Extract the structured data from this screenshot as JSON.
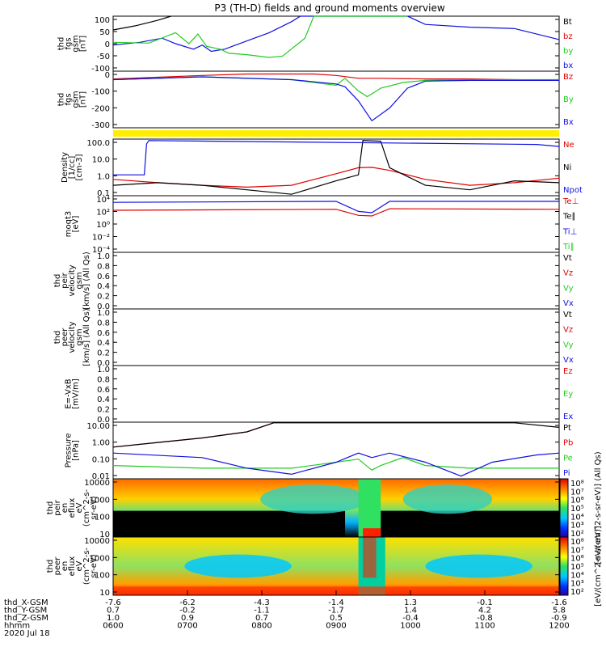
{
  "title": "P3 (TH-D) fields and ground moments overview",
  "colors": {
    "black": "#000000",
    "red": "#e00000",
    "green": "#22cc22",
    "blue": "#1010e0",
    "yellow": "#ffee00"
  },
  "chart_data": [
    {
      "type": "line",
      "ylabel": [
        "thd",
        "fgs",
        "gsm",
        "[nT]"
      ],
      "ylim": [
        -100,
        100
      ],
      "yticks": [
        "100",
        "50",
        "0",
        "-50",
        "-100"
      ],
      "legend": [
        {
          "name": "Bt",
          "color": "black"
        },
        {
          "name": "bz",
          "color": "red"
        },
        {
          "name": "by",
          "color": "green"
        },
        {
          "name": "bx",
          "color": "blue"
        }
      ],
      "series": [
        {
          "name": "Bt",
          "color": "black",
          "x": [
            0,
            0.05,
            0.1,
            0.13
          ],
          "y": [
            50,
            65,
            85,
            100
          ]
        },
        {
          "name": "bx",
          "color": "blue",
          "x": [
            0,
            0.06,
            0.11,
            0.14,
            0.18,
            0.2,
            0.22,
            0.25,
            0.3,
            0.35,
            0.4,
            0.42,
            0.5,
            0.58,
            0.6,
            0.66,
            0.7,
            0.8,
            0.9,
            1.0
          ],
          "y": [
            -5,
            5,
            20,
            0,
            -20,
            -5,
            -28,
            -20,
            10,
            40,
            80,
            100,
            100,
            100,
            100,
            100,
            70,
            60,
            55,
            15
          ]
        },
        {
          "name": "by",
          "color": "green",
          "x": [
            0,
            0.08,
            0.14,
            0.17,
            0.19,
            0.21,
            0.24,
            0.26,
            0.3,
            0.35,
            0.38,
            0.43,
            0.45,
            0.5,
            0.55,
            0.6,
            0.66
          ],
          "y": [
            5,
            2,
            40,
            0,
            35,
            -10,
            -20,
            -35,
            -40,
            -50,
            -45,
            20,
            100,
            100,
            100,
            100,
            100
          ]
        }
      ]
    },
    {
      "type": "line",
      "ylabel": [
        "thd",
        "fgs",
        "gsm",
        "[nT]"
      ],
      "ylim": [
        -340,
        60
      ],
      "yticks": [
        "0",
        "-100",
        "-200",
        "-300"
      ],
      "legend": [
        {
          "name": "Bz",
          "color": "red"
        },
        {
          "name": "By",
          "color": "green"
        },
        {
          "name": "Bx",
          "color": "blue"
        }
      ],
      "series": [
        {
          "name": "Bz",
          "color": "red",
          "x": [
            0,
            0.2,
            0.3,
            0.45,
            0.5,
            0.55,
            0.6,
            0.7,
            0.8,
            0.9,
            1.0
          ],
          "y": [
            5,
            30,
            40,
            40,
            30,
            10,
            10,
            5,
            5,
            0,
            -5
          ]
        },
        {
          "name": "By",
          "color": "green",
          "x": [
            0,
            0.2,
            0.4,
            0.5,
            0.52,
            0.55,
            0.57,
            0.6,
            0.65,
            0.7,
            0.8,
            1.0
          ],
          "y": [
            0,
            20,
            0,
            -40,
            10,
            -80,
            -120,
            -60,
            -20,
            -5,
            0,
            0
          ]
        },
        {
          "name": "Bx",
          "color": "blue",
          "x": [
            0,
            0.2,
            0.4,
            0.5,
            0.52,
            0.55,
            0.58,
            0.62,
            0.66,
            0.7,
            0.8,
            1.0
          ],
          "y": [
            0,
            20,
            0,
            -30,
            -50,
            -150,
            -290,
            -200,
            -60,
            -10,
            -5,
            -5
          ]
        }
      ]
    },
    {
      "type": "line",
      "ylabel": [
        "Density",
        "[1/cc]",
        "[cm-3]"
      ],
      "scale": "log",
      "ylim": [
        0.04,
        250
      ],
      "yticks": [
        "100.0",
        "10.0",
        "1.0",
        "0.1"
      ],
      "legend": [
        {
          "name": "Ne",
          "color": "red"
        },
        {
          "name": "Ni",
          "color": "black"
        },
        {
          "name": "Npot",
          "color": "blue"
        }
      ],
      "series": [
        {
          "name": "Ne",
          "color": "red",
          "x": [
            0,
            0.1,
            0.2,
            0.3,
            0.4,
            0.5,
            0.55,
            0.58,
            0.62,
            0.7,
            0.8,
            0.9,
            1.0
          ],
          "y": [
            0.5,
            0.3,
            0.2,
            0.15,
            0.2,
            1.2,
            3,
            3.2,
            2,
            0.5,
            0.2,
            0.3,
            0.6
          ]
        },
        {
          "name": "Ni",
          "color": "black",
          "x": [
            0,
            0.1,
            0.2,
            0.3,
            0.4,
            0.5,
            0.55,
            0.56,
            0.6,
            0.62,
            0.7,
            0.8,
            0.9,
            1.0
          ],
          "y": [
            0.2,
            0.3,
            0.2,
            0.1,
            0.05,
            0.4,
            1,
            200,
            180,
            3,
            0.2,
            0.1,
            0.4,
            0.3
          ]
        },
        {
          "name": "Npot",
          "color": "blue",
          "x": [
            0,
            0.07,
            0.075,
            0.08,
            0.95,
            1.0
          ],
          "y": [
            1,
            1,
            120,
            200,
            110,
            80
          ]
        }
      ]
    },
    {
      "type": "line",
      "ylabel": [
        "moqt3",
        "[eV]"
      ],
      "scale": "log",
      "ylim": [
        3e-05,
        300000
      ],
      "yticks": [
        "10⁴",
        "10²",
        "10⁰",
        "10⁻²",
        "10⁻⁴"
      ],
      "legend": [
        {
          "name": "Te⊥",
          "color": "red"
        },
        {
          "name": "Te∥",
          "color": "black"
        },
        {
          "name": "Ti⊥",
          "color": "blue"
        },
        {
          "name": "Ti∥",
          "color": "green"
        }
      ],
      "series": [
        {
          "name": "Ti⊥",
          "color": "blue",
          "x": [
            0,
            0.5,
            0.55,
            0.58,
            0.62,
            1.0
          ],
          "y": [
            20000,
            30000,
            500,
            300,
            30000,
            30000
          ]
        },
        {
          "name": "Te⊥",
          "color": "red",
          "x": [
            0,
            0.5,
            0.55,
            0.58,
            0.62,
            1.0
          ],
          "y": [
            800,
            1200,
            100,
            80,
            1500,
            1200
          ]
        }
      ]
    },
    {
      "type": "line",
      "ylabel": [
        "thd",
        "peir",
        "velocity",
        "gsm",
        "[km/s] (All Qs)"
      ],
      "ylim": [
        0,
        1
      ],
      "yticks": [
        "1.0",
        "0.8",
        "0.6",
        "0.4",
        "0.2",
        "0.0"
      ],
      "legend": [
        {
          "name": "Vt",
          "color": "black"
        },
        {
          "name": "Vz",
          "color": "red"
        },
        {
          "name": "Vy",
          "color": "green"
        },
        {
          "name": "Vx",
          "color": "blue"
        }
      ],
      "series": []
    },
    {
      "type": "line",
      "ylabel": [
        "thd",
        "peer",
        "velocity",
        "gsm",
        "[km/s] (All Qs)"
      ],
      "ylim": [
        0,
        1
      ],
      "yticks": [
        "1.0",
        "0.8",
        "0.6",
        "0.4",
        "0.2",
        "0.0"
      ],
      "legend": [
        {
          "name": "Vt",
          "color": "black"
        },
        {
          "name": "Vz",
          "color": "red"
        },
        {
          "name": "Vy",
          "color": "green"
        },
        {
          "name": "Vx",
          "color": "blue"
        }
      ],
      "series": []
    },
    {
      "type": "line",
      "ylabel": [
        "E=-VxB",
        "[mV/m]"
      ],
      "ylim": [
        0,
        1
      ],
      "yticks": [
        "1.0",
        "0.8",
        "0.6",
        "0.4",
        "0.2",
        "0.0"
      ],
      "legend": [
        {
          "name": "Ez",
          "color": "red"
        },
        {
          "name": "Ey",
          "color": "green"
        },
        {
          "name": "Ex",
          "color": "blue"
        }
      ],
      "series": []
    },
    {
      "type": "line",
      "ylabel": [
        "Pressure",
        "[nPa]"
      ],
      "scale": "log",
      "ylim": [
        0.004,
        22
      ],
      "yticks": [
        "10.00",
        "1.00",
        "0.10",
        "0.01"
      ],
      "legend": [
        {
          "name": "Pt",
          "color": "black"
        },
        {
          "name": "Pb",
          "color": "red"
        },
        {
          "name": "Pe",
          "color": "green"
        },
        {
          "name": "Pi",
          "color": "blue"
        }
      ],
      "series": [
        {
          "name": "Pb",
          "color": "red",
          "x": [
            0,
            0.1,
            0.2,
            0.3,
            0.36
          ],
          "y": [
            0.5,
            1,
            2,
            5,
            20
          ]
        },
        {
          "name": "Pt",
          "color": "black",
          "x": [
            0,
            0.1,
            0.2,
            0.3,
            0.36,
            0.9,
            1.0
          ],
          "y": [
            0.5,
            1,
            2,
            5,
            20,
            20,
            10
          ]
        },
        {
          "name": "Pe",
          "color": "green",
          "x": [
            0,
            0.2,
            0.4,
            0.5,
            0.55,
            0.58,
            0.6,
            0.65,
            0.7,
            0.8,
            0.9,
            1.0
          ],
          "y": [
            0.03,
            0.02,
            0.02,
            0.05,
            0.08,
            0.015,
            0.03,
            0.1,
            0.03,
            0.02,
            0.02,
            0.02
          ]
        },
        {
          "name": "Pi",
          "color": "blue",
          "x": [
            0,
            0.2,
            0.3,
            0.4,
            0.5,
            0.55,
            0.58,
            0.62,
            0.7,
            0.78,
            0.85,
            0.95,
            1.0
          ],
          "y": [
            0.2,
            0.1,
            0.02,
            0.008,
            0.05,
            0.2,
            0.1,
            0.2,
            0.05,
            0.006,
            0.05,
            0.15,
            0.2
          ]
        }
      ]
    },
    {
      "type": "heatmap",
      "ylabel": [
        "thd",
        "peir",
        "en",
        "eflux",
        "eV",
        "(cm^2-s-",
        "sr-eV)"
      ],
      "scale": "log",
      "ylim": [
        5,
        25000
      ],
      "yticks": [
        "10000",
        "1000",
        "100",
        "10"
      ],
      "colorbar": {
        "ticks": [
          "10⁸",
          "10⁷",
          "10⁶",
          "10⁵",
          "10⁴",
          "10³",
          "10²"
        ],
        "label": "[eV/(cm^2-s-sr-eV)] (All Qs)"
      }
    },
    {
      "type": "heatmap",
      "ylabel": [
        "thd",
        "peer",
        "en",
        "eflux",
        "eV",
        "(cm^2-s-",
        "sr-eV)"
      ],
      "scale": "log",
      "ylim": [
        5,
        25000
      ],
      "yticks": [
        "10000",
        "1000",
        "100",
        "10"
      ],
      "colorbar": {
        "ticks": [
          "10⁸",
          "10⁷",
          "10⁶",
          "10⁵",
          "10⁴",
          "10³",
          "10²"
        ],
        "label": "[eV/(cm^2-s-sr-eV)]"
      }
    }
  ],
  "xaxis": {
    "rows": [
      {
        "label": "thd_X-GSM",
        "values": [
          "-7.6",
          "-6.2",
          "-4.3",
          "-1.4",
          "1.3",
          "-0.1",
          "-1.6"
        ]
      },
      {
        "label": "thd_Y-GSM",
        "values": [
          "0.7",
          "-0.2",
          "-1.1",
          "-1.7",
          "1.4",
          "4.2",
          "5.8"
        ]
      },
      {
        "label": "thd_Z-GSM",
        "values": [
          "1.0",
          "0.9",
          "0.7",
          "0.5",
          "-0.4",
          "-0.8",
          "-0.9"
        ]
      },
      {
        "label": "hhmm",
        "values": [
          "0600",
          "0700",
          "0800",
          "0900",
          "1000",
          "1100",
          "1200"
        ]
      }
    ],
    "date": "2020 Jul 18"
  }
}
